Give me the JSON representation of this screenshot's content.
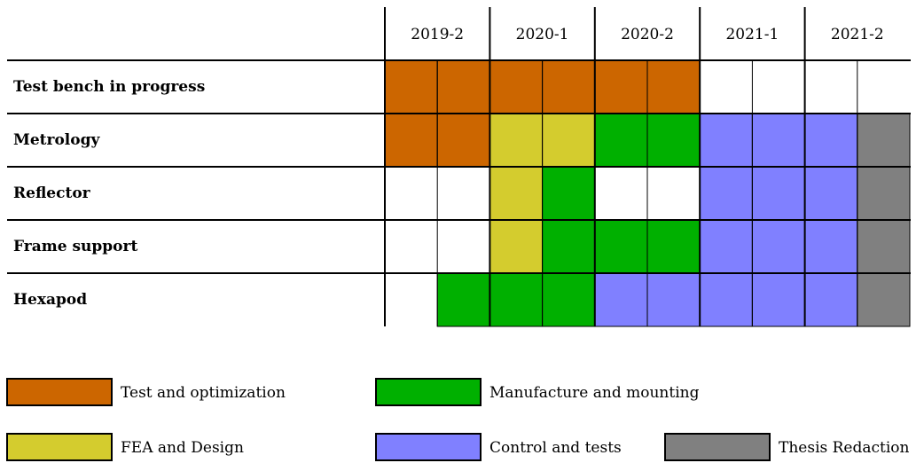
{
  "periods": [
    "2019-2",
    "2020-1",
    "2020-2",
    "2021-1",
    "2021-2"
  ],
  "legend": [
    {
      "key": "test",
      "label": "Test and optimization",
      "color": "#cc6600"
    },
    {
      "key": "mfg",
      "label": "Manufacture and mounting",
      "color": "#00b000"
    },
    {
      "key": "fea",
      "label": "FEA and Design",
      "color": "#d4cc2e"
    },
    {
      "key": "ctrl",
      "label": "Control and tests",
      "color": "#8080ff"
    },
    {
      "key": "thesis",
      "label": "Thesis Redaction",
      "color": "#808080"
    }
  ],
  "rows": [
    {
      "label": "Test bench in progress",
      "cells": [
        "test",
        "test",
        "test",
        "test",
        "test",
        "test",
        "",
        "",
        "",
        ""
      ]
    },
    {
      "label": "Metrology",
      "cells": [
        "test",
        "test",
        "fea",
        "fea",
        "mfg",
        "mfg",
        "ctrl",
        "ctrl",
        "ctrl",
        "thesis"
      ]
    },
    {
      "label": "Reflector",
      "cells": [
        "",
        "",
        "fea",
        "mfg",
        "",
        "",
        "ctrl",
        "ctrl",
        "ctrl",
        "thesis"
      ]
    },
    {
      "label": "Frame support",
      "cells": [
        "",
        "",
        "fea",
        "mfg",
        "mfg",
        "mfg",
        "ctrl",
        "ctrl",
        "ctrl",
        "thesis"
      ]
    },
    {
      "label": "Hexapod",
      "cells": [
        "",
        "mfg",
        "mfg",
        "mfg",
        "ctrl",
        "ctrl",
        "ctrl",
        "ctrl",
        "ctrl",
        "thesis"
      ]
    }
  ]
}
